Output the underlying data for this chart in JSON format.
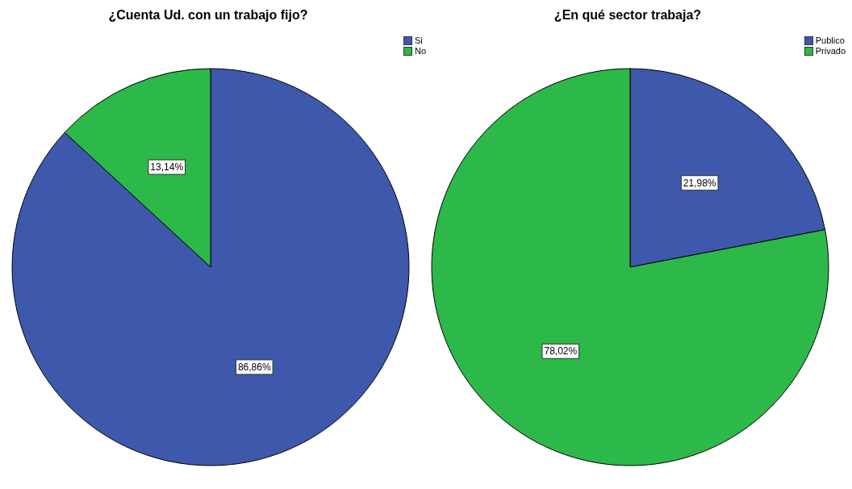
{
  "chart_data": [
    {
      "type": "pie",
      "title": "¿Cuenta Ud. con un trabajo fijo?",
      "categories": [
        "Si",
        "No"
      ],
      "values": [
        86.86,
        13.14
      ],
      "colors": [
        "#3e58ac",
        "#2db84a"
      ],
      "value_labels": [
        "86,86%",
        "13,14%"
      ],
      "legend": "top right"
    },
    {
      "type": "pie",
      "title": "¿En qué sector trabaja?",
      "categories": [
        "Publico",
        "Privado"
      ],
      "values": [
        21.98,
        78.02
      ],
      "colors": [
        "#3e58ac",
        "#2db84a"
      ],
      "value_labels": [
        "21,98%",
        "78,02%"
      ],
      "legend": "top right"
    }
  ]
}
